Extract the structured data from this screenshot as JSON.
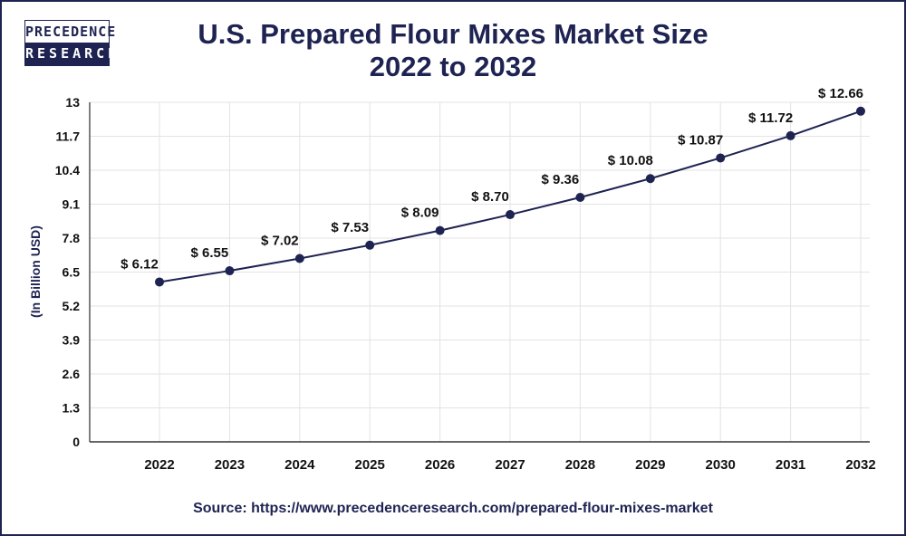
{
  "logo": {
    "line1": "PRECEDENCE",
    "line2": "RESEARCH"
  },
  "title_line1": "U.S. Prepared Flour Mixes Market Size",
  "title_line2": "2022 to 2032",
  "source": "Source: https://www.precedenceresearch.com/prepared-flour-mixes-market",
  "chart_data": {
    "type": "line",
    "title": "U.S. Prepared Flour Mixes Market Size 2022 to 2032",
    "ylabel": "(In Billion USD)",
    "xlabel": "",
    "categories": [
      "2022",
      "2023",
      "2024",
      "2025",
      "2026",
      "2027",
      "2028",
      "2029",
      "2030",
      "2031",
      "2032"
    ],
    "values": [
      6.12,
      6.55,
      7.02,
      7.53,
      8.09,
      8.7,
      9.36,
      10.08,
      10.87,
      11.72,
      12.66
    ],
    "data_labels": [
      "$ 6.12",
      "$ 6.55",
      "$ 7.02",
      "$ 7.53",
      "$ 8.09",
      "$ 8.70",
      "$ 9.36",
      "$ 10.08",
      "$ 10.87",
      "$ 11.72",
      "$ 12.66"
    ],
    "yticks": [
      "0",
      "1.3",
      "2.6",
      "3.9",
      "5.2",
      "6.5",
      "7.8",
      "9.1",
      "10.4",
      "11.7",
      "13"
    ],
    "ylim": [
      0,
      13
    ],
    "grid": true,
    "line_color": "#1e2352"
  }
}
